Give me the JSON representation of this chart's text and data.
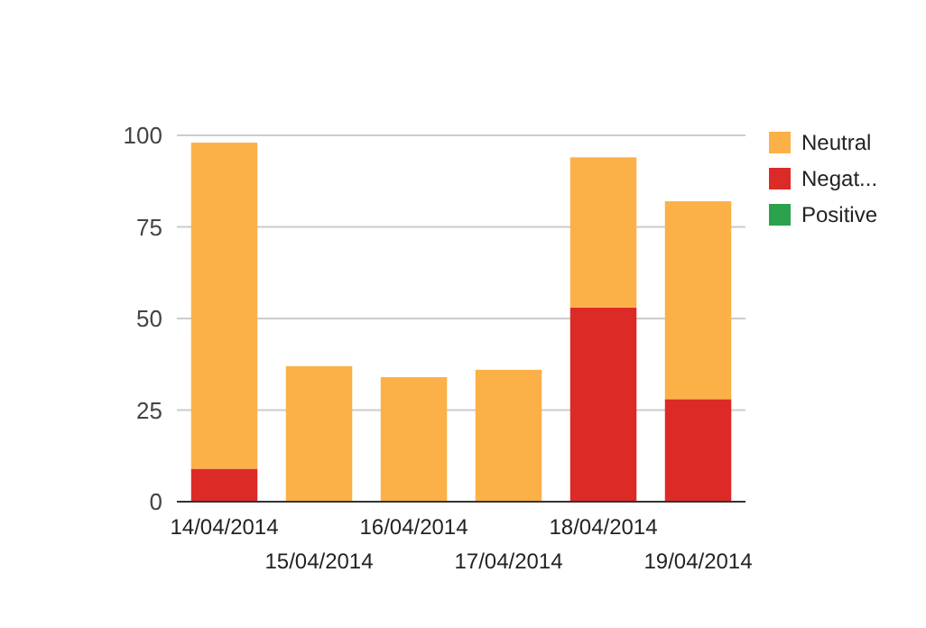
{
  "chart_data": {
    "type": "bar",
    "stacked": true,
    "categories": [
      "14/04/2014",
      "15/04/2014",
      "16/04/2014",
      "17/04/2014",
      "18/04/2014",
      "19/04/2014"
    ],
    "series": [
      {
        "name": "Positive",
        "color": "#2ba24c",
        "values": [
          0,
          0,
          0,
          0,
          0,
          0
        ]
      },
      {
        "name": "Negat...",
        "color": "#dc2a27",
        "values": [
          9,
          0,
          0,
          0,
          53,
          28
        ]
      },
      {
        "name": "Neutral",
        "color": "#fbb148",
        "values": [
          89,
          37,
          34,
          36,
          41,
          54
        ]
      }
    ],
    "ylim": [
      0,
      100
    ],
    "yticks": [
      0,
      25,
      50,
      75,
      100
    ],
    "grid": "y",
    "legend": "right"
  }
}
